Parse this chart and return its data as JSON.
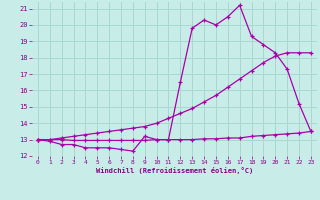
{
  "background_color": "#c8ede8",
  "grid_color": "#a8d8d0",
  "line_color": "#aa00aa",
  "xlabel": "Windchill (Refroidissement éolien,°C)",
  "xlabel_color": "#880088",
  "tick_color": "#880088",
  "xlim": [
    -0.5,
    23.5
  ],
  "ylim": [
    12,
    21.4
  ],
  "yticks": [
    12,
    13,
    14,
    15,
    16,
    17,
    18,
    19,
    20,
    21
  ],
  "xticks": [
    0,
    1,
    2,
    3,
    4,
    5,
    6,
    7,
    8,
    9,
    10,
    11,
    12,
    13,
    14,
    15,
    16,
    17,
    18,
    19,
    20,
    21,
    22,
    23
  ],
  "line1_x": [
    0,
    1,
    2,
    3,
    4,
    5,
    6,
    7,
    8,
    9,
    10,
    11,
    12,
    13,
    14,
    15,
    16,
    17,
    18,
    19,
    20,
    21,
    22,
    23
  ],
  "line1_y": [
    13.0,
    12.9,
    12.7,
    12.7,
    12.5,
    12.5,
    12.5,
    12.4,
    12.3,
    13.2,
    13.0,
    13.0,
    16.5,
    19.8,
    20.3,
    20.0,
    20.5,
    21.2,
    19.3,
    18.8,
    18.3,
    17.3,
    15.2,
    13.5
  ],
  "line2_x": [
    0,
    1,
    2,
    3,
    4,
    5,
    6,
    7,
    8,
    9,
    10,
    11,
    12,
    13,
    14,
    15,
    16,
    17,
    18,
    19,
    20,
    21,
    22,
    23
  ],
  "line2_y": [
    13.0,
    13.0,
    13.1,
    13.2,
    13.3,
    13.4,
    13.5,
    13.6,
    13.7,
    13.8,
    14.0,
    14.3,
    14.6,
    14.9,
    15.3,
    15.7,
    16.2,
    16.7,
    17.2,
    17.7,
    18.1,
    18.3,
    18.3,
    18.3
  ],
  "line3_x": [
    0,
    1,
    2,
    3,
    4,
    5,
    6,
    7,
    8,
    9,
    10,
    11,
    12,
    13,
    14,
    15,
    16,
    17,
    18,
    19,
    20,
    21,
    22,
    23
  ],
  "line3_y": [
    13.0,
    13.0,
    13.0,
    12.95,
    12.95,
    12.95,
    12.95,
    12.95,
    12.95,
    12.95,
    13.0,
    13.0,
    13.0,
    13.0,
    13.05,
    13.05,
    13.1,
    13.1,
    13.2,
    13.25,
    13.3,
    13.35,
    13.4,
    13.5
  ]
}
